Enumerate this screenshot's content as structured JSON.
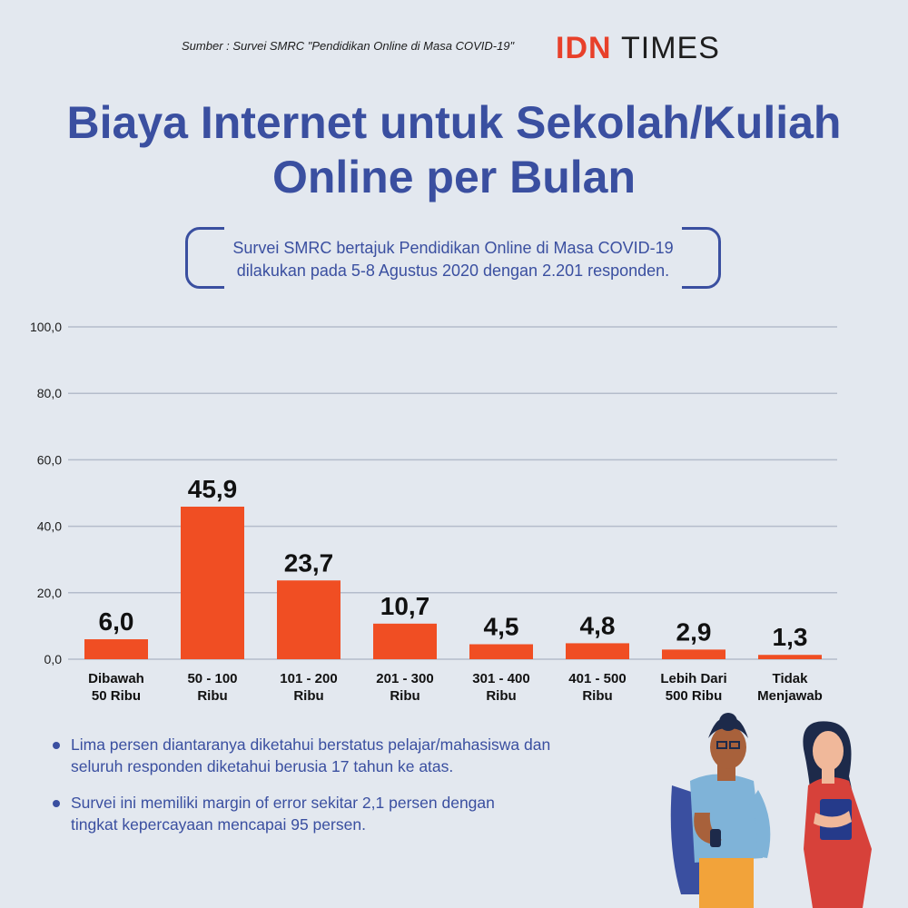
{
  "header": {
    "source": "Sumber : Survei SMRC \"Pendidikan Online di Masa COVID-19\"",
    "logo_idn": "IDN",
    "logo_times": "TIMES"
  },
  "title": {
    "line1": "Biaya Internet untuk Sekolah/Kuliah",
    "line2": "Online per Bulan"
  },
  "subtitle": {
    "line1": "Survei SMRC bertajuk Pendidikan Online di Masa COVID-19",
    "line2": "dilakukan pada 5-8 Agustus 2020 dengan 2.201 responden."
  },
  "chart_data": {
    "type": "bar",
    "categories": [
      [
        "Dibawah",
        "50 Ribu"
      ],
      [
        "50 - 100",
        "Ribu"
      ],
      [
        "101 - 200",
        "Ribu"
      ],
      [
        "201 - 300",
        "Ribu"
      ],
      [
        "301 - 400",
        "Ribu"
      ],
      [
        "401 - 500",
        "Ribu"
      ],
      [
        "Lebih Dari",
        "500 Ribu"
      ],
      [
        "Tidak",
        "Menjawab"
      ]
    ],
    "values": [
      6.0,
      45.9,
      23.7,
      10.7,
      4.5,
      4.8,
      2.9,
      1.3
    ],
    "value_labels": [
      "6,0",
      "45,9",
      "23,7",
      "10,7",
      "4,5",
      "4,8",
      "2,9",
      "1,3"
    ],
    "ylim": [
      0,
      100
    ],
    "yticks": [
      0,
      20,
      40,
      60,
      80,
      100
    ],
    "ytick_labels": [
      "0,0",
      "20,0",
      "40,0",
      "60,0",
      "80,0",
      "100,0"
    ],
    "grid": true,
    "bar_color": "#f04e23"
  },
  "notes": [
    {
      "line1": "Lima persen diantaranya diketahui berstatus pelajar/mahasiswa dan",
      "line2": "seluruh responden diketahui berusia 17 tahun ke atas."
    },
    {
      "line1": "Survei ini memiliki margin of error sekitar 2,1 persen dengan",
      "line2": "tingkat kepercayaan mencapai 95 persen."
    }
  ],
  "colors": {
    "background": "#e3e8ef",
    "accent_blue": "#3a4fa0",
    "accent_red": "#e8402a"
  },
  "illustration": "two-students-illustration"
}
